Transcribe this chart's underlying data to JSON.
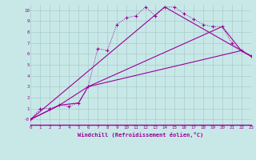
{
  "xlabel": "Windchill (Refroidissement éolien,°C)",
  "background_color": "#c8e8e8",
  "line_color": "#990099",
  "grid_color": "#aacccc",
  "xlim": [
    0,
    23
  ],
  "ylim": [
    -0.5,
    10.5
  ],
  "xticks": [
    0,
    1,
    2,
    3,
    4,
    5,
    6,
    7,
    8,
    9,
    10,
    11,
    12,
    13,
    14,
    15,
    16,
    17,
    18,
    19,
    20,
    21,
    22,
    23
  ],
  "yticks": [
    0,
    1,
    2,
    3,
    4,
    5,
    6,
    7,
    8,
    9,
    10
  ],
  "ytick_labels": [
    "-0",
    "1",
    "2",
    "3",
    "4",
    "5",
    "6",
    "7",
    "8",
    "9",
    "10"
  ],
  "series": [
    {
      "x": [
        0,
        1,
        2,
        3,
        4,
        5,
        6,
        7,
        8,
        9,
        10,
        11,
        12,
        13,
        14,
        15,
        16,
        17,
        18,
        19,
        20,
        21,
        22,
        23
      ],
      "y": [
        0,
        1,
        1,
        1.3,
        1.2,
        1.5,
        3.0,
        6.5,
        6.3,
        8.7,
        9.3,
        9.5,
        10.3,
        9.5,
        10.3,
        10.3,
        9.7,
        9.2,
        8.7,
        8.5,
        8.5,
        7.0,
        6.3,
        5.8
      ],
      "style": "dotted",
      "marker": "+"
    },
    {
      "x": [
        0,
        3,
        5,
        6,
        22,
        23
      ],
      "y": [
        0,
        1.3,
        1.5,
        3.0,
        6.3,
        5.8
      ],
      "style": "solid",
      "marker": null
    },
    {
      "x": [
        0,
        3,
        6,
        20,
        22,
        23
      ],
      "y": [
        0,
        1.3,
        3.0,
        8.5,
        6.3,
        5.8
      ],
      "style": "solid",
      "marker": null
    },
    {
      "x": [
        0,
        14,
        22,
        23
      ],
      "y": [
        0,
        10.3,
        6.3,
        5.8
      ],
      "style": "solid",
      "marker": null
    }
  ]
}
